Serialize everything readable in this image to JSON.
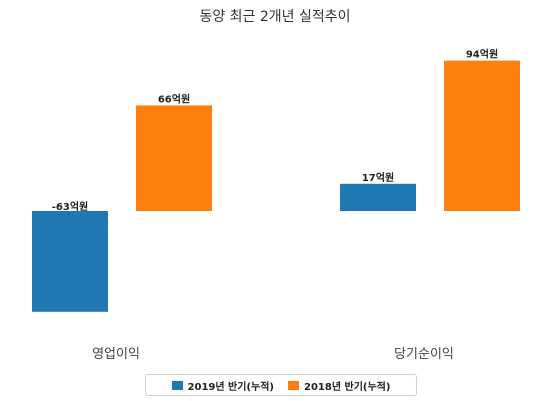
{
  "chart_data": {
    "type": "bar",
    "title": "동양 최근 2개년 실적추이",
    "categories": [
      "영업이익",
      "당기순이익"
    ],
    "series": [
      {
        "name": "2019년 반기(누적)",
        "color": "#1f77b4",
        "values": [
          -63,
          17
        ],
        "labels": [
          "-63억원",
          "17억원"
        ]
      },
      {
        "name": "2018년 반기(누적)",
        "color": "#ff7f0e",
        "values": [
          66,
          94
        ],
        "labels": [
          "66억원",
          "94억원"
        ]
      }
    ],
    "xlabel": "",
    "ylabel": "",
    "ylim": [
      -100,
      100
    ],
    "grid": false,
    "legend_position": "bottom-center"
  }
}
